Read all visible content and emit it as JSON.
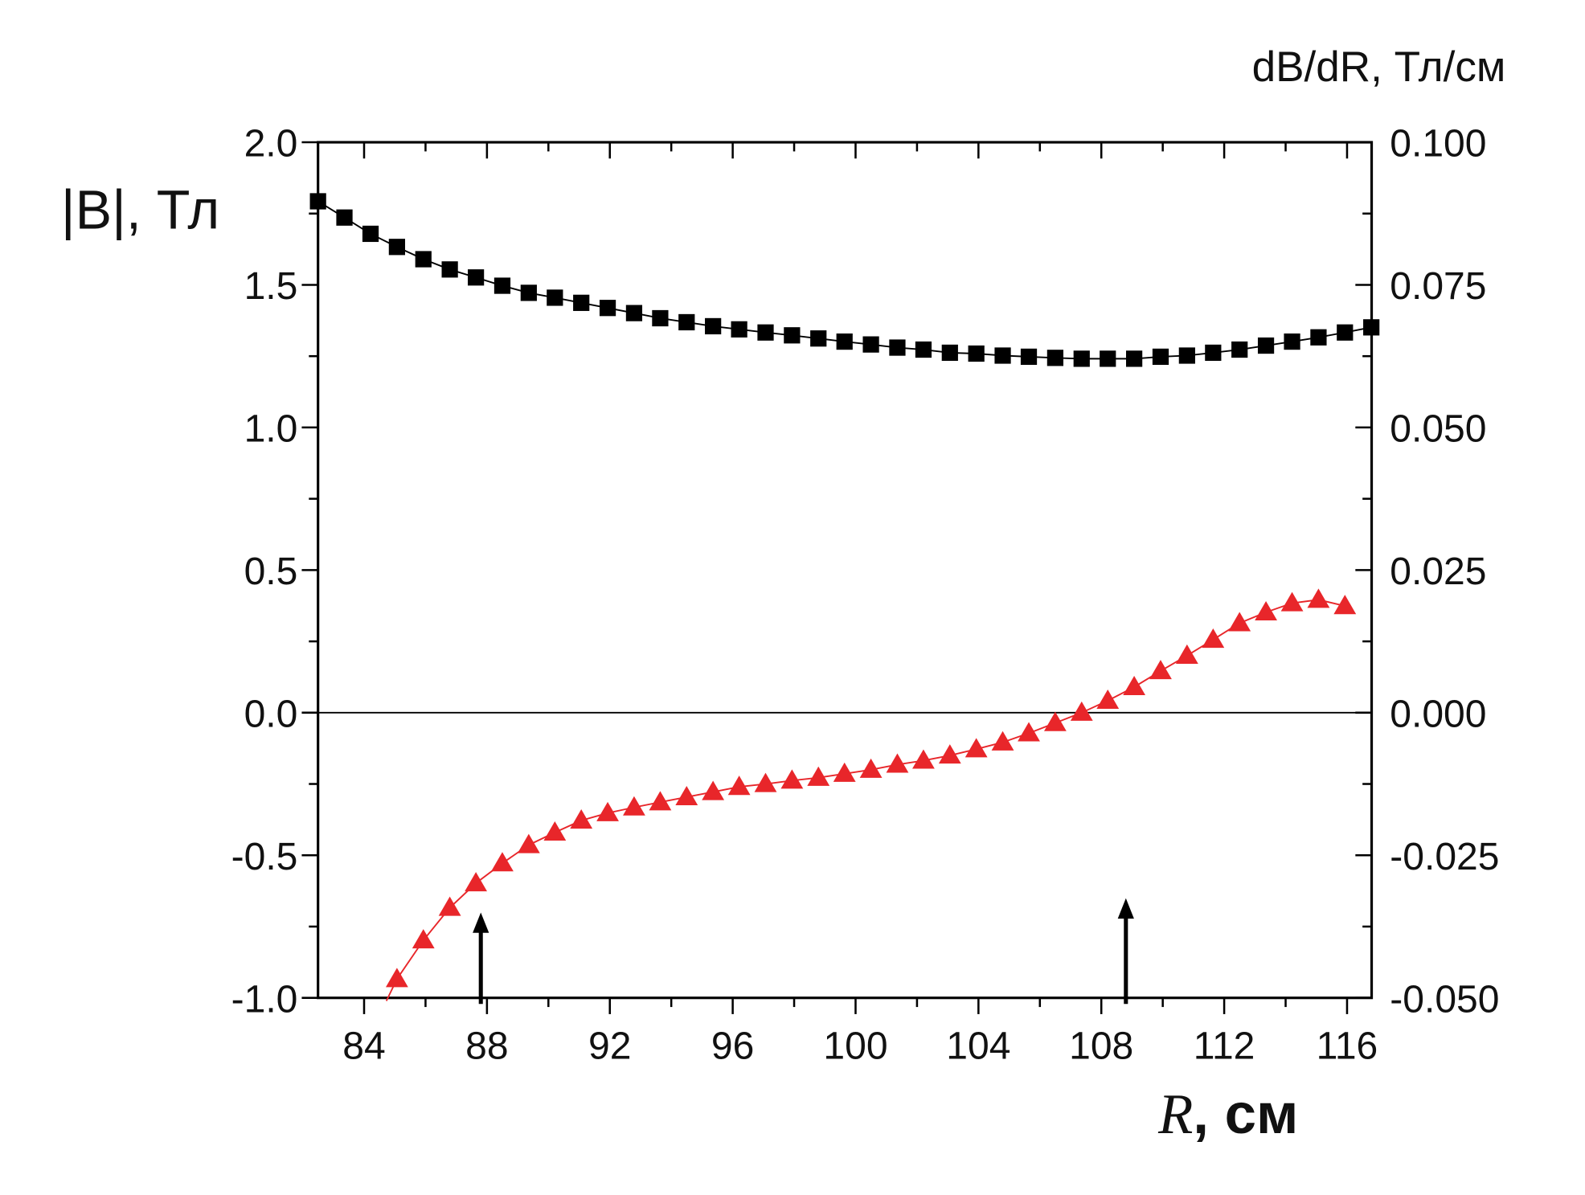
{
  "chart_data": {
    "type": "line",
    "xlabel_italic": "R",
    "xlabel_unit": ", см",
    "ylabel_left": "|B|, Тл",
    "ylabel_right": "dB/dR, Тл/см",
    "xlim": [
      82.5,
      116.8
    ],
    "ylim_left": [
      -1.0,
      2.0
    ],
    "ylim_right": [
      -0.05,
      0.1
    ],
    "xticks": [
      "84",
      "88",
      "92",
      "96",
      "100",
      "104",
      "108",
      "112",
      "116"
    ],
    "yticks_left": [
      "2.0",
      "1.5",
      "1.0",
      "0.5",
      "0.0",
      "-0.5",
      "-1.0"
    ],
    "yticks_right": [
      "0.100",
      "0.075",
      "0.050",
      "0.025",
      "0.000",
      "-0.025",
      "-0.050"
    ],
    "series": [
      {
        "name": "|B|",
        "axis": "left",
        "color": "#000000",
        "marker": "square",
        "x": [
          82.5,
          83.36,
          84.21,
          85.07,
          85.93,
          86.79,
          87.64,
          88.5,
          89.36,
          90.21,
          91.07,
          91.93,
          92.79,
          93.64,
          94.5,
          95.36,
          96.21,
          97.07,
          97.93,
          98.79,
          99.64,
          100.5,
          101.36,
          102.21,
          103.07,
          103.93,
          104.79,
          105.64,
          106.5,
          107.36,
          108.21,
          109.07,
          109.93,
          110.79,
          111.64,
          112.5,
          113.36,
          114.21,
          115.07,
          115.93,
          116.79
        ],
        "y": [
          1.793,
          1.736,
          1.679,
          1.633,
          1.59,
          1.554,
          1.526,
          1.497,
          1.472,
          1.455,
          1.437,
          1.419,
          1.401,
          1.383,
          1.369,
          1.355,
          1.344,
          1.333,
          1.323,
          1.312,
          1.301,
          1.291,
          1.28,
          1.273,
          1.262,
          1.259,
          1.252,
          1.248,
          1.244,
          1.241,
          1.241,
          1.241,
          1.248,
          1.252,
          1.262,
          1.273,
          1.287,
          1.301,
          1.316,
          1.333,
          1.351
        ]
      },
      {
        "name": "dB/dR",
        "axis": "right",
        "color": "#e8262a",
        "marker": "triangle",
        "x": [
          85.07,
          85.93,
          86.79,
          87.64,
          88.5,
          89.36,
          90.21,
          91.07,
          91.93,
          92.79,
          93.64,
          94.5,
          95.36,
          96.21,
          97.07,
          97.93,
          98.79,
          99.64,
          100.5,
          101.36,
          102.21,
          103.07,
          103.93,
          104.79,
          105.64,
          106.5,
          107.36,
          108.21,
          109.07,
          109.93,
          110.79,
          111.64,
          112.5,
          113.36,
          114.21,
          115.07,
          115.93
        ],
        "y": [
          -0.0467,
          -0.0399,
          -0.0342,
          -0.0299,
          -0.0264,
          -0.0232,
          -0.021,
          -0.0189,
          -0.0176,
          -0.0166,
          -0.0157,
          -0.0148,
          -0.0139,
          -0.013,
          -0.0125,
          -0.0119,
          -0.0114,
          -0.0107,
          -0.01,
          -0.0091,
          -0.0084,
          -0.0075,
          -0.0064,
          -0.0052,
          -0.0036,
          -0.0018,
          0.0,
          0.0021,
          0.0045,
          0.0073,
          0.01,
          0.0128,
          0.0157,
          0.0176,
          0.0192,
          0.0198,
          0.0187
        ]
      }
    ],
    "annotations": [
      {
        "type": "arrow",
        "x": 87.8
      },
      {
        "type": "arrow",
        "x": 108.8
      }
    ]
  }
}
